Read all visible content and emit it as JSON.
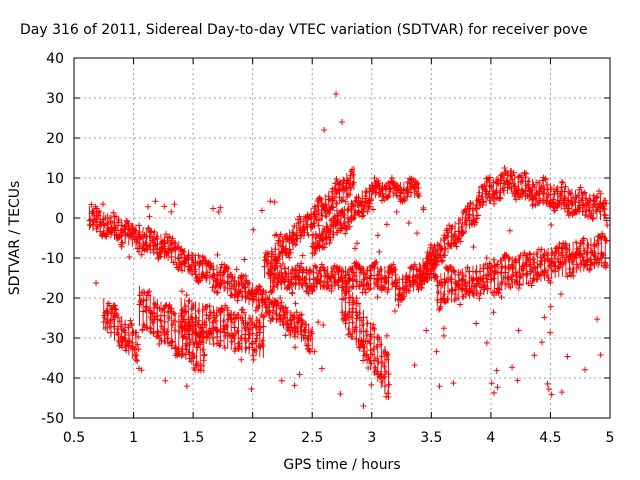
{
  "chart_data": {
    "type": "scatter",
    "title": "Day 316 of 2011, Sidereal Day-to-day VTEC variation (SDTVAR) for receiver pove",
    "xlabel": "GPS time / hours",
    "ylabel": "SDTVAR / TECUs",
    "xlim": [
      0.5,
      5
    ],
    "ylim": [
      -50,
      40
    ],
    "x_ticks": [
      0.5,
      1,
      1.5,
      2,
      2.5,
      3,
      3.5,
      4,
      4.5,
      5
    ],
    "x_tick_labels": [
      "0.5",
      "1",
      "1.5",
      "2",
      "2.5",
      "3",
      "3.5",
      "4",
      "4.5",
      "5"
    ],
    "y_ticks": [
      -50,
      -40,
      -30,
      -20,
      -10,
      0,
      10,
      20,
      30,
      40
    ],
    "y_tick_labels": [
      "-50",
      "-40",
      "-30",
      "-20",
      "-10",
      "0",
      "10",
      "20",
      "30",
      "40"
    ],
    "grid": true,
    "marker": "+",
    "series": [
      {
        "name": "SDTVAR",
        "color": "#ff0000",
        "x_range": [
          0.62,
          4.98
        ],
        "y_range": [
          -47,
          31
        ]
      }
    ],
    "bands": [
      {
        "name": "arc-1",
        "x0": 0.63,
        "x1": 1.4,
        "ymid": [
          0,
          -9
        ],
        "spread": 3
      },
      {
        "name": "arc-2",
        "x0": 1.4,
        "x1": 2.05,
        "ymid": [
          -10,
          -20
        ],
        "spread": 3
      },
      {
        "name": "arc-3",
        "x0": 2.05,
        "x1": 2.5,
        "ymid": [
          -20,
          -30
        ],
        "spread": 3
      },
      {
        "name": "arc-4",
        "x0": 2.15,
        "x1": 3.2,
        "ymid": [
          -15,
          -15
        ],
        "spread": 3
      },
      {
        "name": "arc-5",
        "x0": 3.2,
        "x1": 3.55,
        "ymid": [
          -18,
          -12
        ],
        "spread": 3
      },
      {
        "name": "arc-6",
        "x0": 3.55,
        "x1": 4.98,
        "ymid": [
          -18,
          -8
        ],
        "spread": 4
      },
      {
        "name": "arc-7",
        "x0": 2.1,
        "x1": 2.85,
        "ymid": [
          -12,
          10
        ],
        "spread": 3
      },
      {
        "name": "arc-8",
        "x0": 2.5,
        "x1": 3.0,
        "ymid": [
          -7,
          6
        ],
        "spread": 3
      },
      {
        "name": "arc-9",
        "x0": 3.0,
        "x1": 3.4,
        "ymid": [
          7,
          7
        ],
        "spread": 2
      },
      {
        "name": "arc-10",
        "x0": 3.4,
        "x1": 3.9,
        "ymid": [
          -14,
          3
        ],
        "spread": 3
      },
      {
        "name": "arc-11",
        "x0": 3.9,
        "x1": 4.2,
        "ymid": [
          5,
          10
        ],
        "spread": 3
      },
      {
        "name": "arc-12",
        "x0": 4.2,
        "x1": 4.98,
        "ymid": [
          8,
          2
        ],
        "spread": 3
      },
      {
        "name": "arc-13",
        "x0": 1.4,
        "x1": 2.1,
        "ymid": [
          -25,
          -30
        ],
        "spread": 5
      },
      {
        "name": "arc-14",
        "x0": 0.75,
        "x1": 1.05,
        "ymid": [
          -24,
          -33
        ],
        "spread": 4
      },
      {
        "name": "arc-15",
        "x0": 1.05,
        "x1": 1.6,
        "ymid": [
          -22,
          -34
        ],
        "spread": 5
      },
      {
        "name": "arc-16",
        "x0": 2.75,
        "x1": 3.15,
        "ymid": [
          -20,
          -40
        ],
        "spread": 6
      }
    ]
  }
}
